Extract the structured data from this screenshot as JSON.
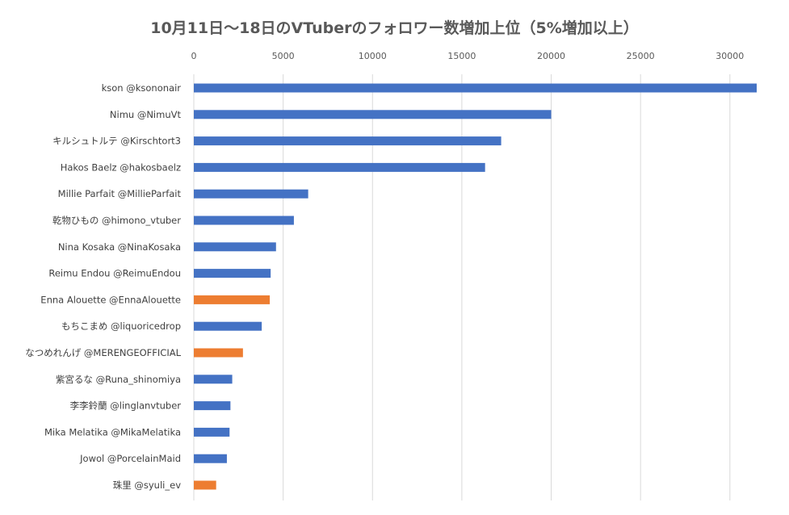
{
  "chart_data": {
    "type": "bar",
    "orientation": "horizontal",
    "title": "10月11日～18日のVTuberのフォロワー数増加上位（5%増加以上）",
    "xlabel": "",
    "ylabel": "",
    "xlim": [
      0,
      31500
    ],
    "ticks": [
      "0",
      "5000",
      "10000",
      "15000",
      "20000",
      "25000",
      "30000"
    ],
    "tick_values": [
      0,
      5000,
      10000,
      15000,
      20000,
      25000,
      30000
    ],
    "axis_position": "top",
    "grid": true,
    "legend": "none",
    "categories": [
      "kson @ksononair",
      "Nimu @NimuVt",
      "キルシュトルテ @Kirschtort3",
      "Hakos Baelz @hakosbaelz",
      "Millie Parfait @MillieParfait",
      "乾物ひもの @himono_vtuber",
      "Nina Kosaka @NinaKosaka",
      "Reimu Endou @ReimuEndou",
      "Enna Alouette @EnnaAlouette",
      "もちこまめ @liquoricedrop",
      "なつめれんげ @MERENGEOFFICIAL",
      "紫宮るな @Runa_shinomiya",
      "李李鈴蘭 @linglanvtuber",
      "Mika Melatika @MikaMelatika",
      "Jowol @PorcelainMaid",
      "珠里 @syuli_ev"
    ],
    "values": [
      31500,
      20000,
      17200,
      16300,
      6400,
      5600,
      4600,
      4300,
      4250,
      3800,
      2750,
      2150,
      2050,
      2000,
      1850,
      1250
    ],
    "colors": [
      "blue",
      "blue",
      "blue",
      "blue",
      "blue",
      "blue",
      "blue",
      "blue",
      "orange",
      "blue",
      "orange",
      "blue",
      "blue",
      "blue",
      "blue",
      "orange"
    ],
    "palette": {
      "blue": "#4472c4",
      "orange": "#ed7d31",
      "grid": "#d9d9d9",
      "text": "#595959"
    }
  }
}
